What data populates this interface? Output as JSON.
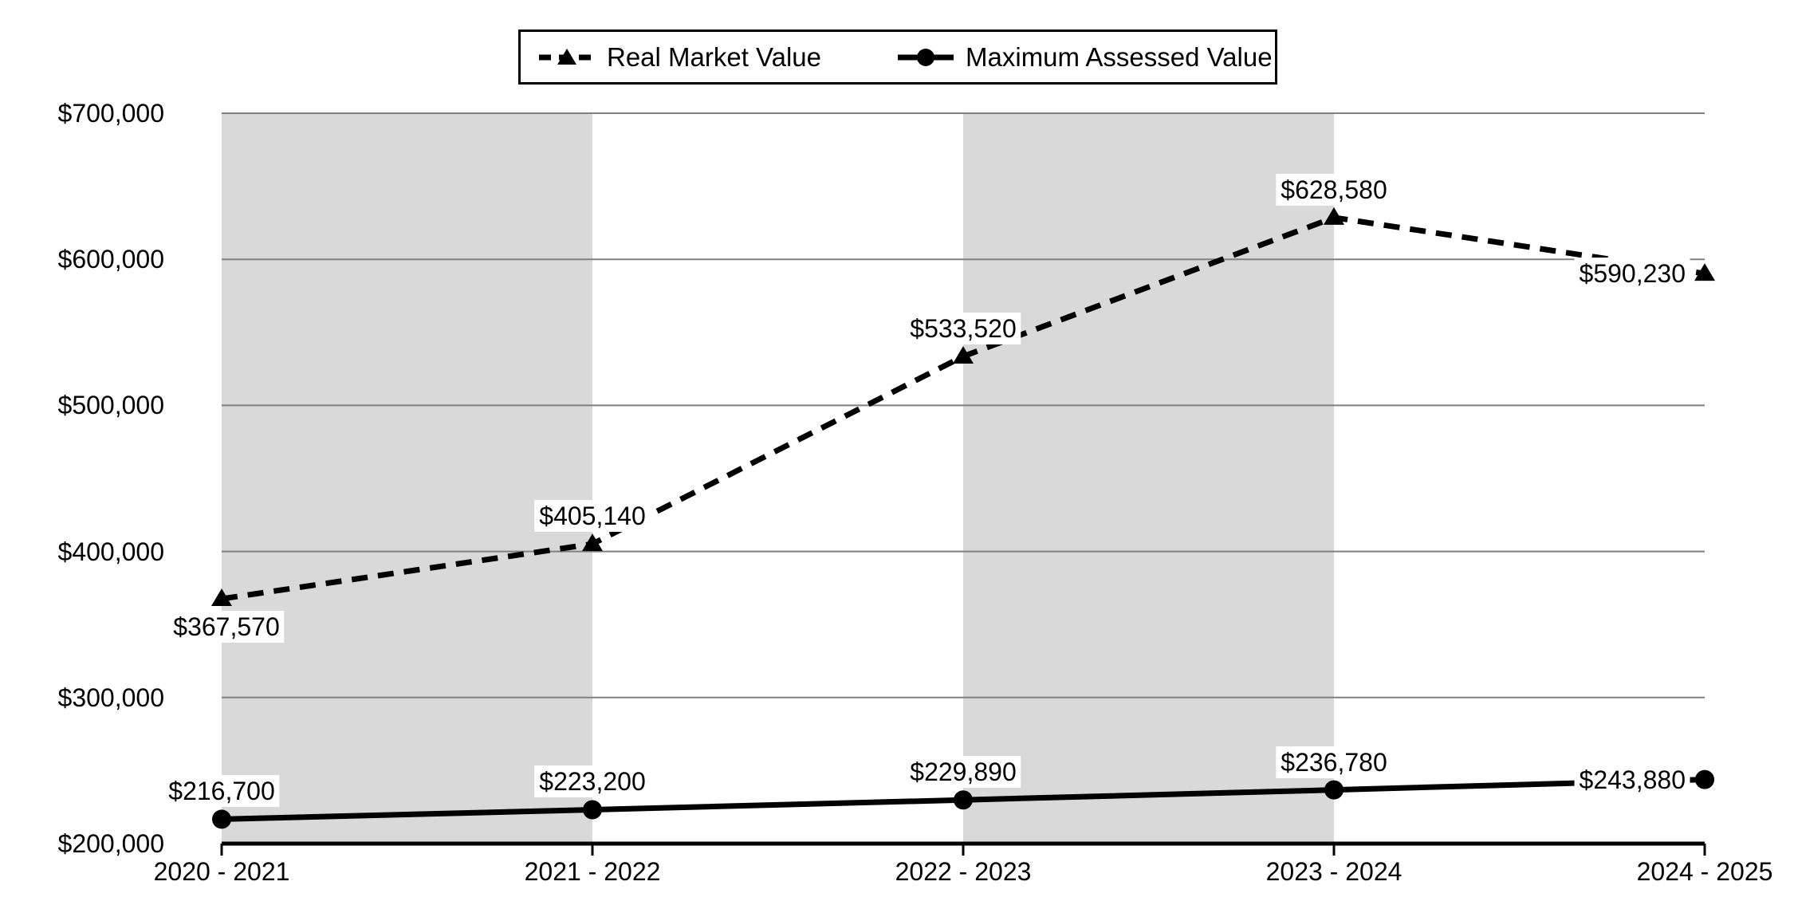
{
  "chart_data": {
    "type": "line",
    "title": "",
    "xlabel": "",
    "ylabel": "",
    "categories": [
      "2020 - 2021",
      "2021 - 2022",
      "2022 - 2023",
      "2023 - 2024",
      "2024 - 2025"
    ],
    "ylim": [
      200000,
      700000
    ],
    "y_ticks": [
      {
        "value": 700000,
        "label": "$700,000"
      },
      {
        "value": 600000,
        "label": "$600,000"
      },
      {
        "value": 500000,
        "label": "$500,000"
      },
      {
        "value": 400000,
        "label": "$400,000"
      },
      {
        "value": 300000,
        "label": "$300,000"
      },
      {
        "value": 200000,
        "label": "$200,000"
      }
    ],
    "grid": true,
    "legend_position": "top-center",
    "plot_band_category_pairs": [
      [
        0,
        1
      ],
      [
        2,
        3
      ]
    ],
    "series": [
      {
        "name": "Real Market Value",
        "line_style": "dashed",
        "marker": "triangle",
        "values": [
          367570,
          405140,
          533520,
          628580,
          590230
        ],
        "data_labels": [
          "$367,570",
          "$405,140",
          "$533,520",
          "$628,580",
          "$590,230"
        ],
        "label_positions": [
          "below",
          "above",
          "above",
          "above",
          "left"
        ]
      },
      {
        "name": "Maximum Assessed Value",
        "line_style": "solid",
        "marker": "circle",
        "values": [
          216700,
          223200,
          229890,
          236780,
          243880
        ],
        "data_labels": [
          "$216,700",
          "$223,200",
          "$229,890",
          "$236,780",
          "$243,880"
        ],
        "label_positions": [
          "above",
          "above",
          "above",
          "above",
          "left"
        ]
      }
    ],
    "colors": {
      "series_line": "#000000",
      "plot_band": "#D9D9D9",
      "gridline": "#808080",
      "axis_line": "#000000",
      "data_label_bg": "#FFFFFF",
      "text": "#000000"
    }
  }
}
